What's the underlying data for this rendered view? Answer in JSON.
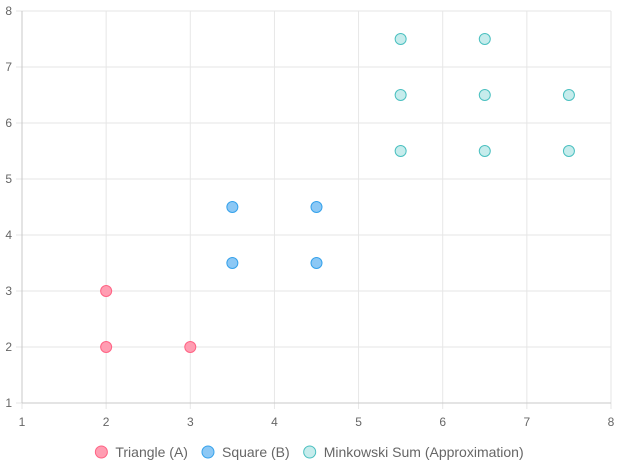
{
  "chart_data": {
    "type": "scatter",
    "title": "",
    "xlabel": "",
    "ylabel": "",
    "xlim": [
      1,
      8
    ],
    "ylim": [
      1,
      8
    ],
    "xticks": [
      "1",
      "2",
      "3",
      "4",
      "5",
      "6",
      "7",
      "8"
    ],
    "yticks": [
      "1",
      "2",
      "3",
      "4",
      "5",
      "6",
      "7",
      "8"
    ],
    "grid": true,
    "legend_position": "bottom",
    "series": [
      {
        "name": "Triangle (A)",
        "fill": "#ff9db2",
        "stroke": "#ff6384",
        "points": [
          [
            2,
            2
          ],
          [
            3,
            2
          ],
          [
            2,
            3
          ]
        ]
      },
      {
        "name": "Square (B)",
        "fill": "#8cc8f5",
        "stroke": "#36a2eb",
        "points": [
          [
            3.5,
            3.5
          ],
          [
            4.5,
            3.5
          ],
          [
            3.5,
            4.5
          ],
          [
            4.5,
            4.5
          ]
        ]
      },
      {
        "name": "Minkowski Sum (Approximation)",
        "fill": "#c6ecec",
        "stroke": "#4bc0c0",
        "points": [
          [
            5.5,
            5.5
          ],
          [
            6.5,
            5.5
          ],
          [
            7.5,
            5.5
          ],
          [
            5.5,
            6.5
          ],
          [
            6.5,
            6.5
          ],
          [
            7.5,
            6.5
          ],
          [
            5.5,
            7.5
          ],
          [
            6.5,
            7.5
          ]
        ]
      }
    ]
  }
}
